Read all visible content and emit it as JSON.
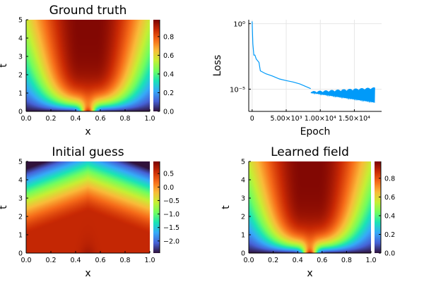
{
  "colors": {
    "line": "#009af9",
    "grid": "#e6e6e6",
    "colormap": [
      "#30123b",
      "#4662d7",
      "#36aaf9",
      "#1ae4b6",
      "#72fe5e",
      "#c7ef34",
      "#faba39",
      "#f66b19",
      "#ca2a04",
      "#7a0403"
    ]
  },
  "chart_data": [
    {
      "type": "heatmap",
      "title": "Ground truth",
      "xlabel": "x",
      "ylabel": "t",
      "xlim": [
        0,
        1
      ],
      "ylim": [
        0,
        5
      ],
      "x_ticks": [
        "0.0",
        "0.2",
        "0.4",
        "0.6",
        "0.8",
        "1.0"
      ],
      "y_ticks": [
        "0",
        "1",
        "2",
        "3",
        "4",
        "5"
      ],
      "color_range": [
        0,
        0.98
      ],
      "colorbar_ticks": [
        "0.0",
        "0.2",
        "0.4",
        "0.6",
        "0.8"
      ],
      "colorbar_values": [
        0,
        0.2,
        0.4,
        0.6,
        0.8
      ],
      "field": "solution"
    },
    {
      "type": "line",
      "title": "",
      "xlabel": "Epoch",
      "ylabel": "Loss",
      "yscale": "log",
      "xlim": [
        -500,
        19000
      ],
      "ylim": [
        2e-07,
        2
      ],
      "x_ticks": [
        "0",
        "5.00×10³",
        "1.00×10⁴",
        "1.50×10⁴"
      ],
      "x_tick_values": [
        0,
        5000,
        10000,
        15000
      ],
      "y_ticks": [
        "10⁰",
        "10⁻⁵"
      ],
      "y_tick_values": [
        1,
        1e-05
      ],
      "grid": true,
      "legend": "none",
      "series": [
        {
          "x": [
            0,
            100,
            250,
            400,
            600,
            1000,
            1200,
            2000,
            3000,
            4000,
            5000,
            6000,
            7000,
            8000,
            8600
          ],
          "y": [
            1.5,
            0.03,
            0.004,
            0.004,
            0.002,
            0.0011,
            0.00025,
            0.00015,
            0.0001,
            6e-05,
            4.5e-05,
            3.5e-05,
            2.5e-05,
            1.5e-05,
            1.1e-05
          ]
        },
        {
          "x": [
            8600,
            18000
          ],
          "y_low": [
            5e-06,
            9e-07
          ],
          "y_high": [
            6e-06,
            1.2e-05
          ],
          "oscillating": true
        }
      ]
    },
    {
      "type": "heatmap",
      "title": "Initial guess",
      "xlabel": "x",
      "ylabel": "t",
      "xlim": [
        0,
        1
      ],
      "ylim": [
        0,
        5
      ],
      "x_ticks": [
        "0.0",
        "0.2",
        "0.4",
        "0.6",
        "0.8",
        "1.0"
      ],
      "y_ticks": [
        "0",
        "1",
        "2",
        "3",
        "4",
        "5"
      ],
      "color_range": [
        -2.45,
        0.95
      ],
      "colorbar_ticks": [
        "0.5",
        "0.0",
        "−0.5",
        "−1.0",
        "−1.5",
        "−2.0"
      ],
      "colorbar_values": [
        0.5,
        0,
        -0.5,
        -1,
        -1.5,
        -2
      ],
      "field": "initial"
    },
    {
      "type": "heatmap",
      "title": "Learned field",
      "xlabel": "x",
      "ylabel": "t",
      "xlim": [
        0,
        1
      ],
      "ylim": [
        0,
        5
      ],
      "x_ticks": [
        "0.0",
        "0.2",
        "0.4",
        "0.6",
        "0.8",
        "1.0"
      ],
      "y_ticks": [
        "0",
        "1",
        "2",
        "3",
        "4",
        "5"
      ],
      "color_range": [
        0,
        0.98
      ],
      "colorbar_ticks": [
        "0.0",
        "0.2",
        "0.4",
        "0.6",
        "0.8"
      ],
      "colorbar_values": [
        0,
        0.2,
        0.4,
        0.6,
        0.8
      ],
      "field": "solution"
    }
  ]
}
